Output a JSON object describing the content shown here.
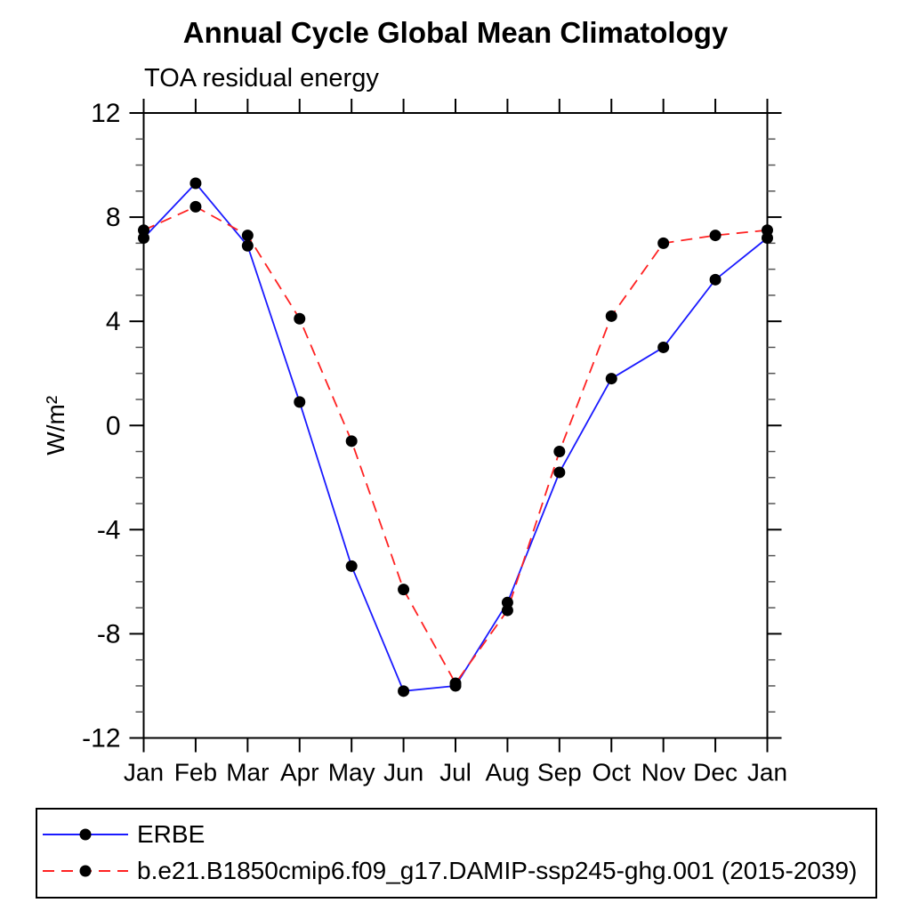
{
  "title": "Annual Cycle Global Mean Climatology",
  "subtitle": "TOA residual energy",
  "ylabel": "W/m²",
  "chart_data": {
    "type": "line",
    "categories": [
      "Jan",
      "Feb",
      "Mar",
      "Apr",
      "May",
      "Jun",
      "Jul",
      "Aug",
      "Sep",
      "Oct",
      "Nov",
      "Dec",
      "Jan"
    ],
    "series": [
      {
        "name": "ERBE",
        "color": "#1a1aff",
        "line_style": "solid",
        "marker": "filled-circle",
        "marker_color": "#000000",
        "values": [
          7.2,
          9.3,
          6.9,
          0.9,
          -5.4,
          -10.2,
          -10.0,
          -6.8,
          -1.8,
          1.8,
          3.0,
          5.6,
          7.2
        ]
      },
      {
        "name": "b.e21.B1850cmip6.f09_g17.DAMIP-ssp245-ghg.001 (2015-2039)",
        "color": "#ff2222",
        "line_style": "dashed",
        "marker": "filled-circle",
        "marker_color": "#000000",
        "values": [
          7.5,
          8.4,
          7.3,
          4.1,
          -0.6,
          -6.3,
          -9.9,
          -7.1,
          -1.0,
          4.2,
          7.0,
          7.3,
          7.5
        ]
      }
    ],
    "ylim": [
      -12,
      12
    ],
    "yticks": [
      12,
      8,
      4,
      0,
      -4,
      -8,
      -12
    ],
    "minor_tick_interval": 1,
    "grid": false,
    "legend_position": "bottom-box",
    "axis_color": "#000000",
    "background_color": "#ffffff"
  }
}
